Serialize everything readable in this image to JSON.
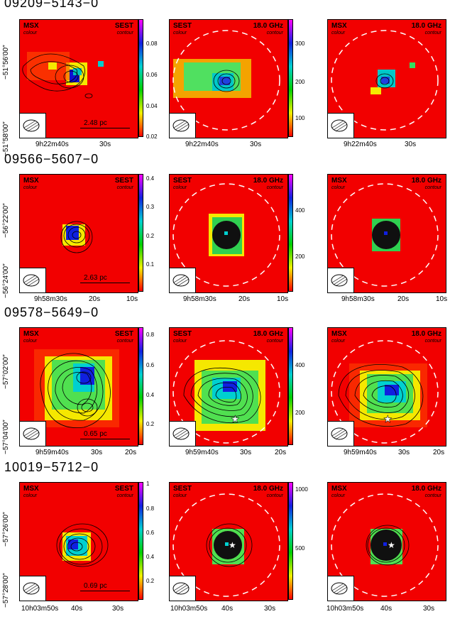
{
  "rows": [
    {
      "title": "09209−5143−0",
      "ylabels": [
        "−51°56′00″",
        "−51°58′00″"
      ],
      "scale_label": "2.48 pc",
      "xlabels": [
        "9h22m40s",
        "30s"
      ],
      "colorbar1": [
        "0.08",
        "0.06",
        "0.04",
        "0.02"
      ],
      "colorbar2": [
        "300",
        "200",
        "100"
      ]
    },
    {
      "title": "09566−5607−0",
      "ylabels": [
        "−56°22′00″",
        "−56°24′00″"
      ],
      "scale_label": "2.63 pc",
      "xlabels": [
        "9h58m30s",
        "20s",
        "10s"
      ],
      "colorbar1": [
        "0.4",
        "0.3",
        "0.2",
        "0.1"
      ],
      "colorbar2": [
        "400",
        "200"
      ]
    },
    {
      "title": "09578−5649−0",
      "ylabels": [
        "−57°02′00″",
        "−57°04′00″"
      ],
      "scale_label": "0.65 pc",
      "xlabels": [
        "9h59m40s",
        "30s",
        "20s"
      ],
      "colorbar1": [
        "0.8",
        "0.6",
        "0.4",
        "0.2"
      ],
      "colorbar2": [
        "400",
        "200"
      ]
    },
    {
      "title": "10019−5712−0",
      "ylabels": [
        "−57°26′00″",
        "−57°28′00″"
      ],
      "scale_label": "0.69 pc",
      "xlabels": [
        "10h03m50s",
        "40s",
        "30s"
      ],
      "colorbar1": [
        "1",
        "0.8",
        "0.6",
        "0.4",
        "0.2"
      ],
      "colorbar2": [
        "1000",
        "500"
      ]
    }
  ],
  "labels": {
    "msx": "MSX",
    "sest": "SEST",
    "colour": "colour",
    "contour": "contour",
    "freq": "18.0 GHz"
  }
}
